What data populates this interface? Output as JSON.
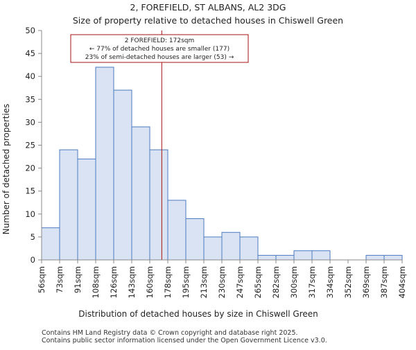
{
  "chart_data": {
    "type": "bar",
    "title": "2, FOREFIELD, ST ALBANS, AL2 3DG",
    "subtitle": "Size of property relative to detached houses in Chiswell Green",
    "xlabel": "Distribution of detached houses by size in Chiswell Green",
    "ylabel": "Number of detached properties",
    "bin_edges": [
      56,
      73,
      91,
      108,
      126,
      143,
      160,
      178,
      195,
      213,
      230,
      247,
      265,
      282,
      300,
      317,
      334,
      352,
      369,
      387,
      404
    ],
    "tick_labels": [
      "56sqm",
      "73sqm",
      "91sqm",
      "108sqm",
      "126sqm",
      "143sqm",
      "160sqm",
      "178sqm",
      "195sqm",
      "213sqm",
      "230sqm",
      "247sqm",
      "265sqm",
      "282sqm",
      "300sqm",
      "317sqm",
      "334sqm",
      "352sqm",
      "369sqm",
      "387sqm",
      "404sqm"
    ],
    "values": [
      7,
      24,
      22,
      42,
      37,
      29,
      24,
      13,
      9,
      5,
      6,
      5,
      1,
      1,
      2,
      2,
      0,
      0,
      1,
      1
    ],
    "ylim": [
      0,
      50
    ],
    "yticks": [
      0,
      5,
      10,
      15,
      20,
      25,
      30,
      35,
      40,
      45,
      50
    ],
    "property_marker": 172,
    "annotation": {
      "line1": "2 FOREFIELD: 172sqm",
      "line2": "← 77% of detached houses are smaller (177)",
      "line3": "23% of semi-detached houses are larger (53) →"
    },
    "colors": {
      "bar_fill": "#dae3f3",
      "bar_edge": "#4a7abf",
      "marker": "#aa1111",
      "axis": "#888888"
    }
  },
  "footer": {
    "line1": "Contains HM Land Registry data © Crown copyright and database right 2025.",
    "line2": "Contains public sector information licensed under the Open Government Licence v3.0."
  }
}
